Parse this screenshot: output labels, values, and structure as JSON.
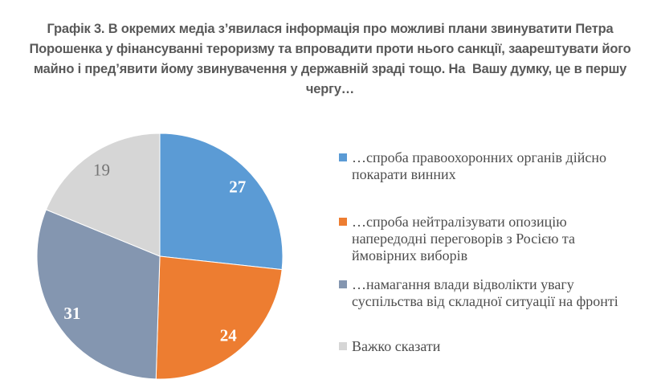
{
  "chart_data": {
    "type": "pie",
    "title": "Графік 3. В окремих медіа з’явилася інформація про можливі плани звинуватити Петра Порошенка у фінансуванні тероризму та впровадити проти нього санкції, заарештувати його майно і пред’явити йому звинувачення у державній зраді тощо. На  Вашу думку, це в першу чергу…",
    "unit": "percent",
    "start_angle_deg": 0,
    "direction": "clockwise",
    "legend_position": "right",
    "grid": false,
    "title_color": "#595959",
    "legend_text_color": "#4d4d4d",
    "slices": [
      {
        "label": "…спроба правоохоронних органів дійсно покарати винних",
        "value": 27,
        "color": "#5B9BD5",
        "label_color": "#FFFFFF",
        "label_weight": "bold"
      },
      {
        "label": "…спроба нейтралізувати опозицію напередодні переговорів з Росією та ймовірних виборів",
        "value": 24,
        "color": "#ED7D31",
        "label_color": "#FFFFFF",
        "label_weight": "bold"
      },
      {
        "label": "…намагання влади відволікти увагу суспільства від складної ситуації на фронті",
        "value": 31,
        "color": "#8496B0",
        "label_color": "#FFFFFF",
        "label_weight": "bold"
      },
      {
        "label": "Важко сказати",
        "value": 19,
        "color": "#D6D6D6",
        "label_color": "#757575",
        "label_weight": "normal"
      }
    ]
  }
}
